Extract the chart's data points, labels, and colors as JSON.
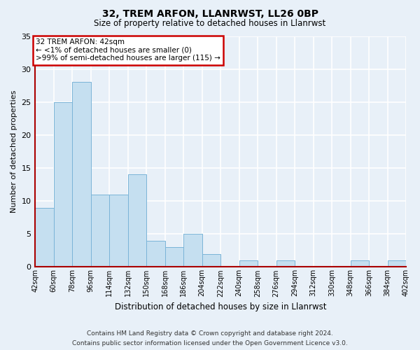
{
  "title": "32, TREM ARFON, LLANRWST, LL26 0BP",
  "subtitle": "Size of property relative to detached houses in Llanrwst",
  "xlabel": "Distribution of detached houses by size in Llanrwst",
  "ylabel": "Number of detached properties",
  "bar_color": "#c5dff0",
  "bar_edge_color": "#7ab4d8",
  "spine_color": "#aa0000",
  "annotation_text": "32 TREM ARFON: 42sqm\n← <1% of detached houses are smaller (0)\n>99% of semi-detached houses are larger (115) →",
  "annotation_box_color": "#ffffff",
  "annotation_box_edge_color": "#cc0000",
  "bins": [
    42,
    60,
    78,
    96,
    114,
    132,
    150,
    168,
    186,
    204,
    222,
    240,
    258,
    276,
    294,
    312,
    330,
    348,
    366,
    384,
    402
  ],
  "counts": [
    9,
    25,
    28,
    11,
    11,
    14,
    4,
    3,
    5,
    2,
    0,
    1,
    0,
    1,
    0,
    0,
    0,
    1,
    0,
    1
  ],
  "ylim": [
    0,
    35
  ],
  "yticks": [
    0,
    5,
    10,
    15,
    20,
    25,
    30,
    35
  ],
  "footer_line1": "Contains HM Land Registry data © Crown copyright and database right 2024.",
  "footer_line2": "Contains public sector information licensed under the Open Government Licence v3.0.",
  "bg_color": "#e8f0f8",
  "plot_bg_color": "#e8f0f8",
  "grid_color": "#ffffff",
  "title_fontsize": 10,
  "subtitle_fontsize": 8.5,
  "ylabel_fontsize": 8,
  "xlabel_fontsize": 8.5,
  "tick_fontsize": 7,
  "footer_fontsize": 6.5
}
